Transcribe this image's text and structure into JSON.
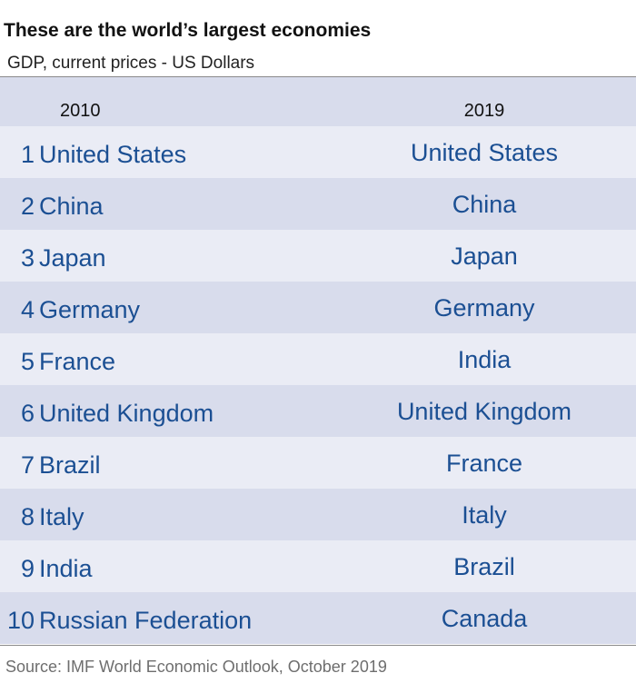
{
  "title": "These are the world’s largest economies",
  "subtitle": "GDP, current prices - US Dollars",
  "source": "Source: IMF World Economic Outlook, October 2019",
  "colors": {
    "text_blue": "#1b4f93",
    "row_shade": "#d8dcec",
    "row_plain": "#eaecf5"
  },
  "chart_data": {
    "type": "table",
    "columns": [
      "",
      "2010",
      "2019"
    ],
    "rows": [
      [
        "1",
        "United States",
        "United States"
      ],
      [
        "2",
        "China",
        "China"
      ],
      [
        "3",
        "Japan",
        "Japan"
      ],
      [
        "4",
        "Germany",
        "Germany"
      ],
      [
        "5",
        "France",
        "India"
      ],
      [
        "6",
        "United Kingdom",
        "United Kingdom"
      ],
      [
        "7",
        "Brazil",
        "France"
      ],
      [
        "8",
        "Italy",
        "Italy"
      ],
      [
        "9",
        "India",
        "Brazil"
      ],
      [
        "10",
        "Russian Federation",
        "Canada"
      ]
    ]
  }
}
